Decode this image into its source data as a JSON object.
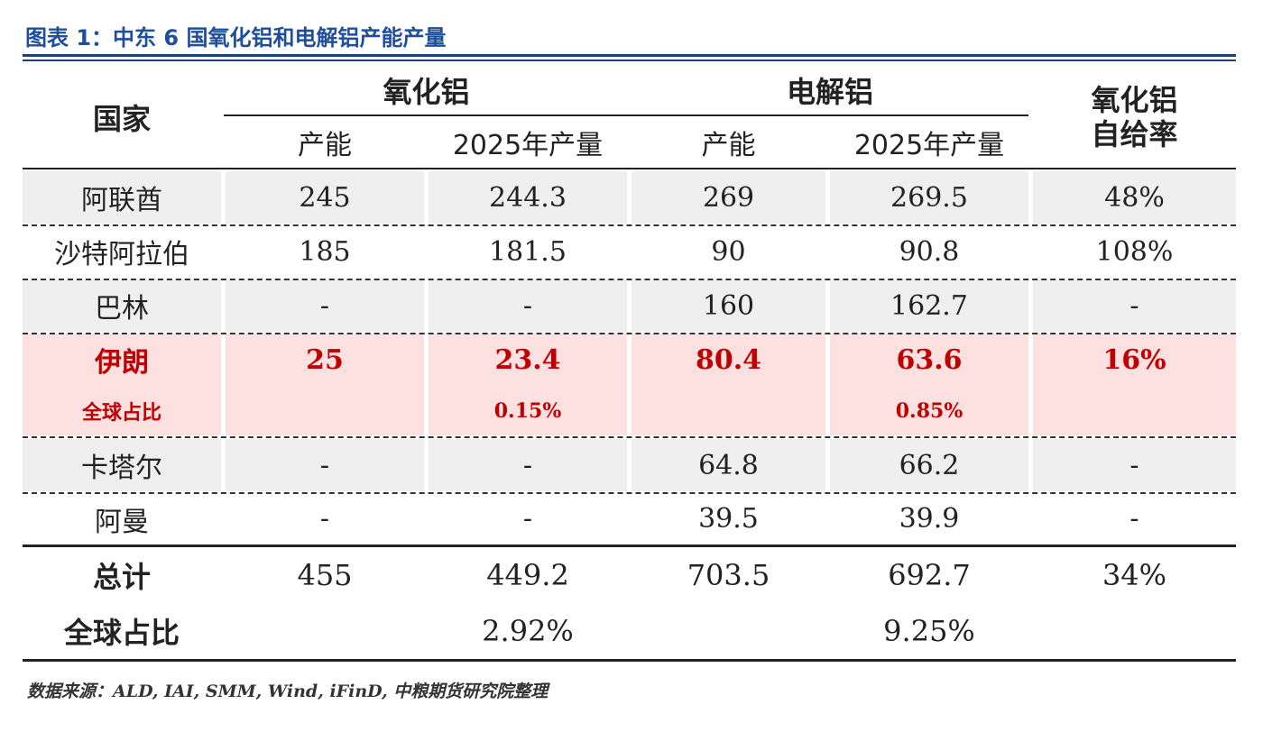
{
  "title": "图表 1：中东 6 国氧化铝和电解铝产能产量",
  "table": {
    "header": {
      "country": "国家",
      "groups": [
        "氧化铝",
        "电解铝"
      ],
      "subheaders": [
        "产能",
        "2025年产量",
        "产能",
        "2025年产量"
      ],
      "ratio": [
        "氧化铝",
        "自给率"
      ]
    },
    "rows": [
      [
        "阿联酋",
        "245",
        "244.3",
        "269",
        "269.5",
        "48%"
      ],
      [
        "沙特阿拉伯",
        "185",
        "181.5",
        "90",
        "90.8",
        "108%"
      ],
      [
        "巴林",
        "-",
        "-",
        "160",
        "162.7",
        "-"
      ],
      [
        "伊朗",
        "25",
        "23.4",
        "80.4",
        "63.6",
        "16%"
      ],
      [
        "卡塔尔",
        "-",
        "-",
        "64.8",
        "66.2",
        "-"
      ],
      [
        "阿曼",
        "-",
        "-",
        "39.5",
        "39.9",
        "-"
      ]
    ],
    "iran_share": {
      "label": "全球占比",
      "alumina_output": "0.15%",
      "aluminum_output": "0.85%"
    },
    "total": [
      "总计",
      "455",
      "449.2",
      "703.5",
      "692.7",
      "34%"
    ],
    "total_share": {
      "label": "全球占比",
      "alumina_output": "2.92%",
      "aluminum_output": "9.25%"
    }
  },
  "source": "数据来源：ALD, IAI, SMM, Wind, iFinD, 中粮期货研究院整理"
}
